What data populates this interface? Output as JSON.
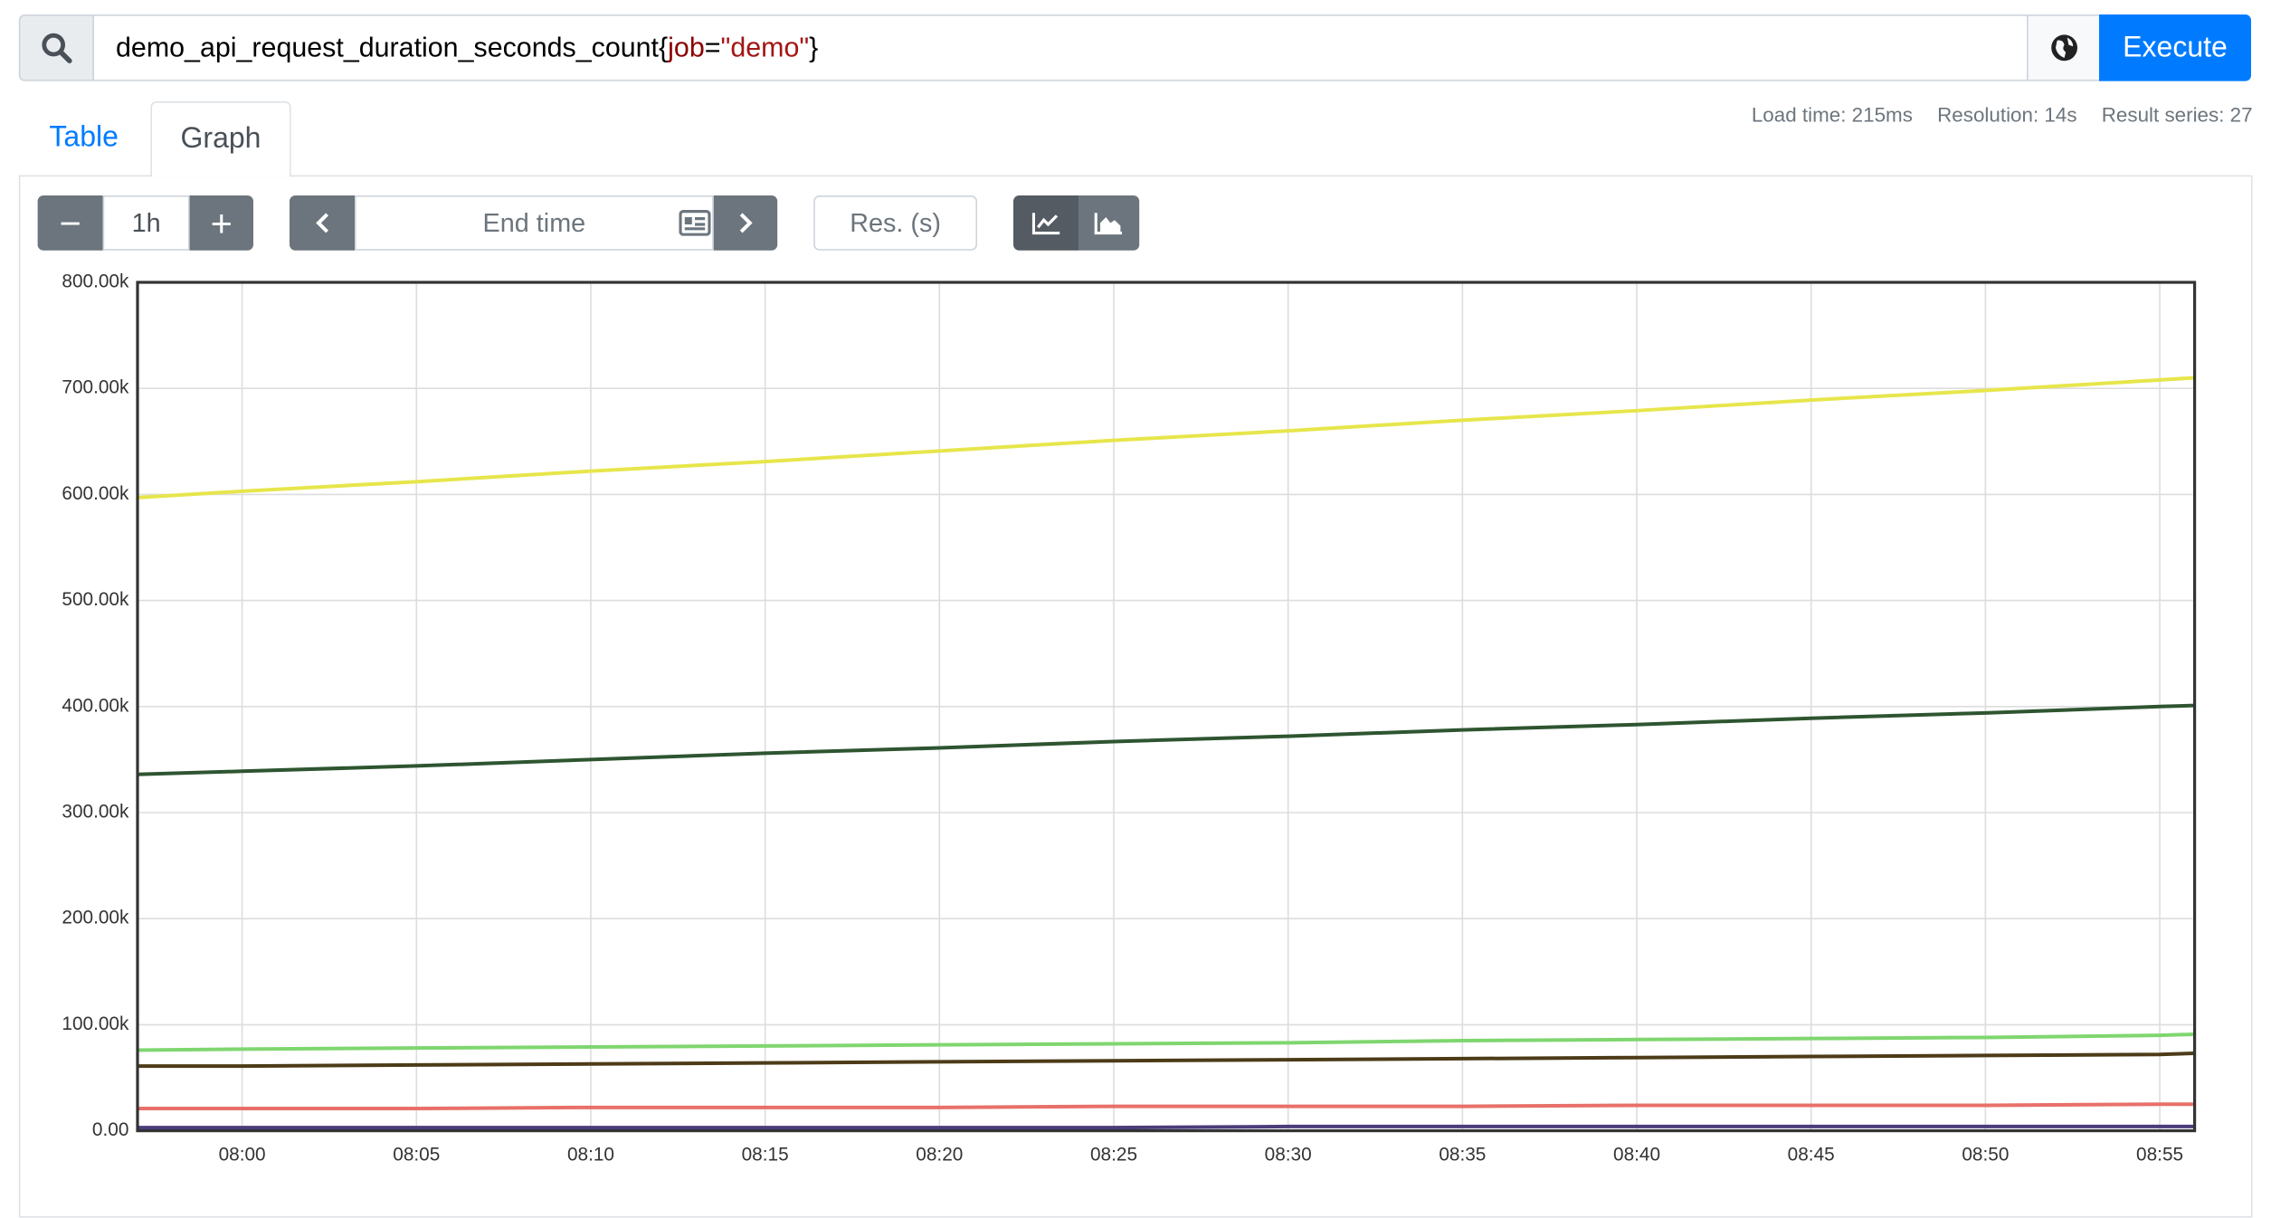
{
  "query": {
    "metric": "demo_api_request_duration_seconds_count",
    "open": "{",
    "label": "job",
    "op": "=",
    "value": "\"demo\"",
    "close": "}"
  },
  "execute": "Execute",
  "tabs": [
    "Table",
    "Graph"
  ],
  "stats": [
    "Load time: 215ms",
    "Resolution: 14s",
    "Result series: 27"
  ],
  "controls": {
    "range": "1h",
    "end_time": "End time",
    "resolution": "Res. (s)"
  },
  "chart_data": {
    "type": "line",
    "x": [
      "07:57",
      "08:00",
      "08:05",
      "08:10",
      "08:15",
      "08:20",
      "08:25",
      "08:30",
      "08:35",
      "08:40",
      "08:45",
      "08:50",
      "08:55",
      "08:56"
    ],
    "xlim": [
      "07:57",
      "08:56"
    ],
    "xticks": [
      "08:00",
      "08:05",
      "08:10",
      "08:15",
      "08:20",
      "08:25",
      "08:30",
      "08:35",
      "08:40",
      "08:45",
      "08:50",
      "08:55"
    ],
    "ylim": [
      0,
      800000
    ],
    "yticks": [
      {
        "value": 0,
        "label": "0.00"
      },
      {
        "value": 100000,
        "label": "100.00k"
      },
      {
        "value": 200000,
        "label": "200.00k"
      },
      {
        "value": 300000,
        "label": "300.00k"
      },
      {
        "value": 400000,
        "label": "400.00k"
      },
      {
        "value": 500000,
        "label": "500.00k"
      },
      {
        "value": 600000,
        "label": "600.00k"
      },
      {
        "value": 700000,
        "label": "700.00k"
      },
      {
        "value": 800000,
        "label": "800.00k"
      }
    ],
    "grid": true,
    "series": [
      {
        "color": "#e6e64c",
        "values": [
          597000,
          603000,
          612000,
          622000,
          631000,
          641000,
          651000,
          660000,
          670000,
          679000,
          689000,
          698000,
          708000,
          710000
        ]
      },
      {
        "color": "#2e5530",
        "values": [
          336000,
          339000,
          344000,
          350000,
          356000,
          361000,
          367000,
          372000,
          378000,
          383000,
          389000,
          394000,
          400000,
          401000
        ]
      },
      {
        "color": "#7fd66f",
        "values": [
          76000,
          77000,
          78000,
          79000,
          80000,
          81000,
          82000,
          83000,
          85000,
          86000,
          87000,
          88000,
          90000,
          91000
        ]
      },
      {
        "color": "#4d3b18",
        "values": [
          61000,
          61000,
          62000,
          63000,
          64000,
          65000,
          66000,
          67000,
          68000,
          69000,
          70000,
          71000,
          72000,
          73000
        ]
      },
      {
        "color": "#e8706a",
        "values": [
          21000,
          21000,
          21000,
          22000,
          22000,
          22000,
          23000,
          23000,
          23000,
          24000,
          24000,
          24000,
          25000,
          25000
        ]
      },
      {
        "color": "#4b3d7a",
        "values": [
          3000,
          3000,
          3000,
          3000,
          3000,
          3000,
          3000,
          4000,
          4000,
          4000,
          4000,
          4000,
          4000,
          4000
        ]
      }
    ]
  }
}
